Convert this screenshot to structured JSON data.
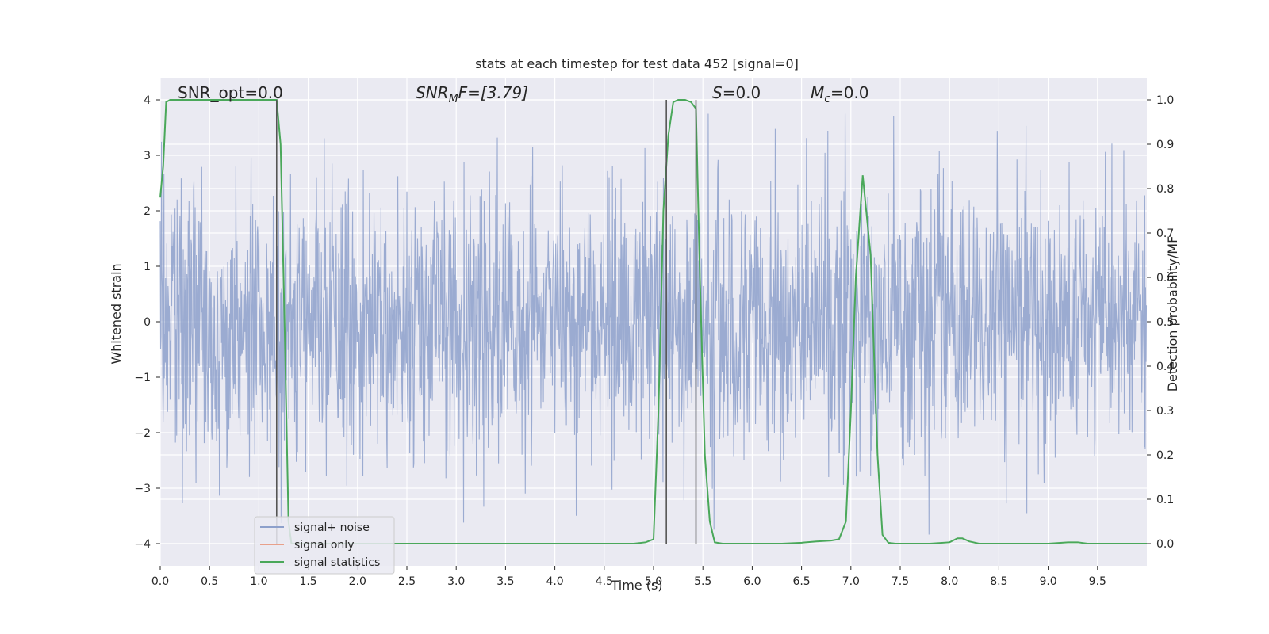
{
  "chart_data": {
    "type": "line",
    "title": "stats at each timestep for test data 452 [signal=0]",
    "xlabel": "Time (s)",
    "ylabel_left": "Whitened strain",
    "ylabel_right": "Detection probability/MF",
    "xlim": [
      0.0,
      10.0
    ],
    "ylim_left": [
      -4.4,
      4.4
    ],
    "ylim_right": [
      -0.05,
      1.05
    ],
    "x_ticks": [
      "0.0",
      "0.5",
      "1.0",
      "1.5",
      "2.0",
      "2.5",
      "3.0",
      "3.5",
      "4.0",
      "4.5",
      "5.0",
      "5.5",
      "6.0",
      "6.5",
      "7.0",
      "7.5",
      "8.0",
      "8.5",
      "9.0",
      "9.5"
    ],
    "x_tick_values": [
      0.0,
      0.5,
      1.0,
      1.5,
      2.0,
      2.5,
      3.0,
      3.5,
      4.0,
      4.5,
      5.0,
      5.5,
      6.0,
      6.5,
      7.0,
      7.5,
      8.0,
      8.5,
      9.0,
      9.5
    ],
    "y_left_ticks": [
      "−4",
      "−3",
      "−2",
      "−1",
      "0",
      "1",
      "2",
      "3",
      "4"
    ],
    "y_left_tick_values": [
      -4,
      -3,
      -2,
      -1,
      0,
      1,
      2,
      3,
      4
    ],
    "y_right_ticks": [
      "0.0",
      "0.1",
      "0.2",
      "0.3",
      "0.4",
      "0.5",
      "0.6",
      "0.7",
      "0.8",
      "0.9",
      "1.0"
    ],
    "y_right_tick_values": [
      0.0,
      0.1,
      0.2,
      0.3,
      0.4,
      0.5,
      0.6,
      0.7,
      0.8,
      0.9,
      1.0
    ],
    "grid": true,
    "annotations": {
      "snr_opt": "SNR_opt=0.0",
      "snr_mf_base": "SNR",
      "snr_mf_sub": "M",
      "snr_mf_rest": "F=[3.79]",
      "s_base": "S",
      "s_rest": "=0.0",
      "mc_base": "M",
      "mc_sub": "c",
      "mc_rest": "=0.0"
    },
    "vertical_lines_x": [
      1.18,
      5.13,
      5.43
    ],
    "legend": {
      "placement": "lower-left",
      "entries": [
        "signal+ noise",
        "signal only",
        "signal statistics"
      ]
    },
    "colors": {
      "noise": "#8da0cb",
      "signal_only": "#e8a08a",
      "statistics": "#4aa85a",
      "vline": "#555555",
      "plot_bg": "#eaeaf2",
      "grid": "#ffffff"
    },
    "series": [
      {
        "name": "signal statistics",
        "axis": "right",
        "points": [
          [
            0.0,
            0.78
          ],
          [
            0.03,
            0.85
          ],
          [
            0.06,
            0.995
          ],
          [
            0.1,
            1.0
          ],
          [
            0.2,
            1.0
          ],
          [
            0.4,
            1.0
          ],
          [
            0.6,
            1.0
          ],
          [
            0.8,
            1.0
          ],
          [
            1.0,
            1.0
          ],
          [
            1.15,
            1.0
          ],
          [
            1.18,
            1.0
          ],
          [
            1.22,
            0.9
          ],
          [
            1.26,
            0.5
          ],
          [
            1.3,
            0.05
          ],
          [
            1.33,
            0.0
          ],
          [
            1.5,
            0.0
          ],
          [
            2.0,
            0.0
          ],
          [
            2.5,
            0.0
          ],
          [
            3.0,
            0.0
          ],
          [
            3.5,
            0.0
          ],
          [
            4.0,
            0.0
          ],
          [
            4.5,
            0.0
          ],
          [
            4.8,
            0.0
          ],
          [
            4.92,
            0.003
          ],
          [
            5.0,
            0.01
          ],
          [
            5.05,
            0.3
          ],
          [
            5.1,
            0.75
          ],
          [
            5.15,
            0.92
          ],
          [
            5.2,
            0.995
          ],
          [
            5.25,
            1.0
          ],
          [
            5.32,
            1.0
          ],
          [
            5.38,
            0.995
          ],
          [
            5.43,
            0.98
          ],
          [
            5.47,
            0.6
          ],
          [
            5.52,
            0.2
          ],
          [
            5.57,
            0.05
          ],
          [
            5.62,
            0.003
          ],
          [
            5.7,
            0.0
          ],
          [
            6.0,
            0.0
          ],
          [
            6.3,
            0.0
          ],
          [
            6.5,
            0.002
          ],
          [
            6.65,
            0.005
          ],
          [
            6.8,
            0.007
          ],
          [
            6.88,
            0.01
          ],
          [
            6.95,
            0.05
          ],
          [
            7.0,
            0.3
          ],
          [
            7.05,
            0.6
          ],
          [
            7.12,
            0.83
          ],
          [
            7.2,
            0.65
          ],
          [
            7.27,
            0.2
          ],
          [
            7.32,
            0.02
          ],
          [
            7.38,
            0.002
          ],
          [
            7.45,
            0.0
          ],
          [
            7.8,
            0.0
          ],
          [
            8.0,
            0.003
          ],
          [
            8.08,
            0.012
          ],
          [
            8.13,
            0.012
          ],
          [
            8.2,
            0.005
          ],
          [
            8.3,
            0.0
          ],
          [
            8.6,
            0.0
          ],
          [
            9.0,
            0.0
          ],
          [
            9.2,
            0.003
          ],
          [
            9.3,
            0.003
          ],
          [
            9.4,
            0.0
          ],
          [
            9.6,
            0.0
          ],
          [
            10.0,
            0.0
          ]
        ]
      }
    ]
  }
}
